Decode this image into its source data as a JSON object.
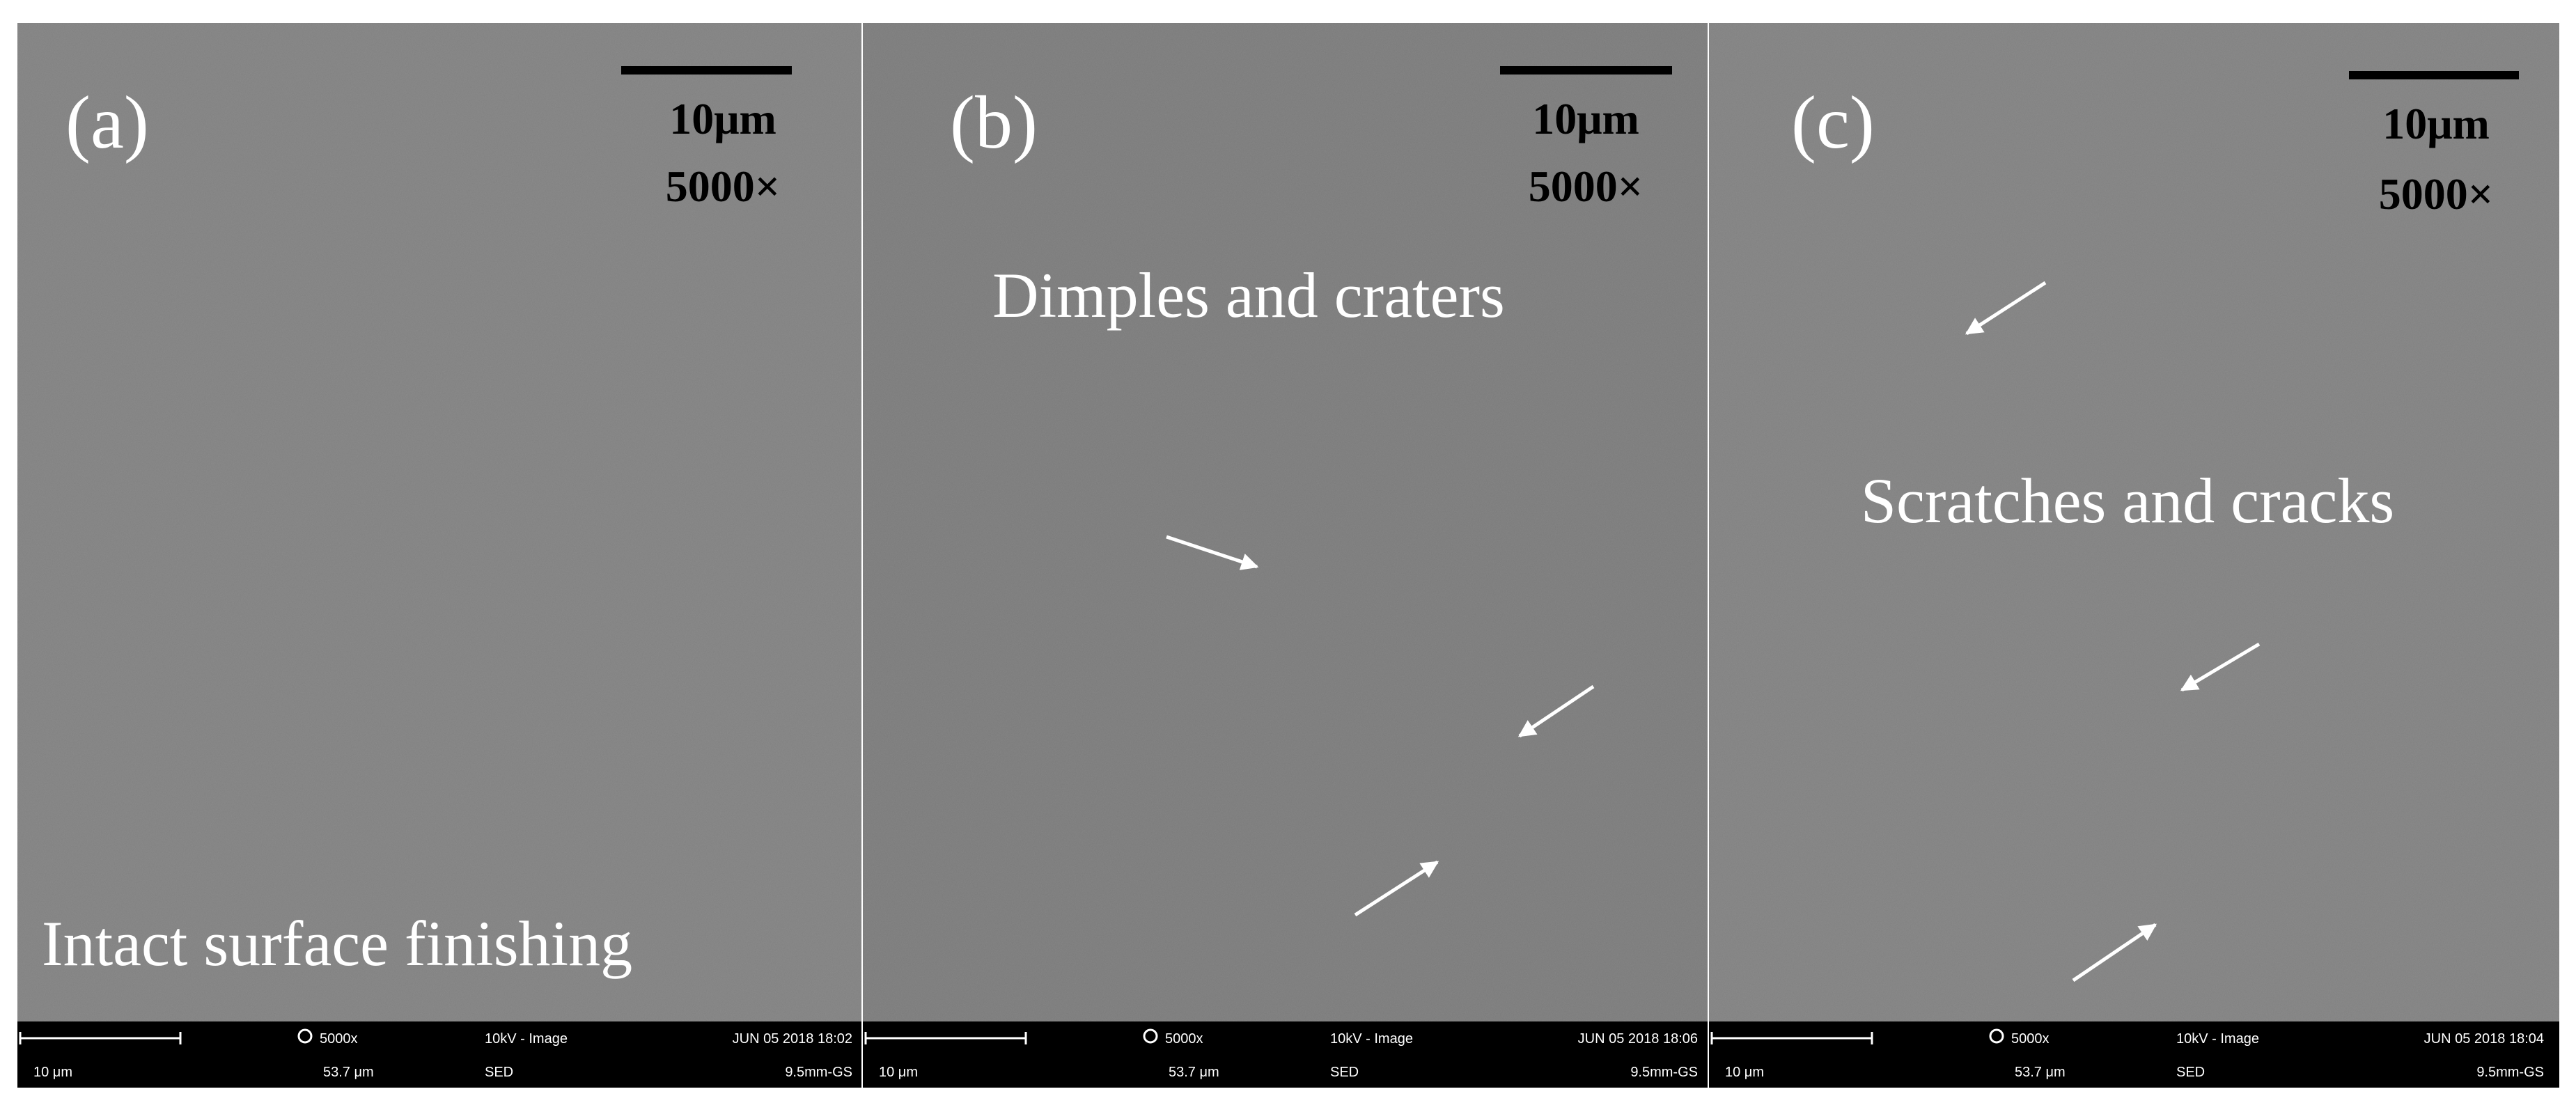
{
  "panels": [
    {
      "label": "(a)",
      "scale_text": "10μm",
      "magnification": "5000×",
      "annotation": "Intact surface finishing",
      "footer": {
        "scale": "10 μm",
        "magnification": "5000x",
        "field_width": "53.7 μm",
        "mode": "10kV - Image",
        "detector": "SED",
        "date": "JUN 05 2018 18:02",
        "working_distance": "9.5mm-GS"
      }
    },
    {
      "label": "(b)",
      "scale_text": "10μm",
      "magnification": "5000×",
      "annotation": "Dimples and craters",
      "footer": {
        "scale": "10 μm",
        "magnification": "5000x",
        "field_width": "53.7 μm",
        "mode": "10kV - Image",
        "detector": "SED",
        "date": "JUN 05 2018 18:06",
        "working_distance": "9.5mm-GS"
      }
    },
    {
      "label": "(c)",
      "scale_text": "10μm",
      "magnification": "5000×",
      "annotation": "Scratches and cracks",
      "footer": {
        "scale": "10 μm",
        "magnification": "5000x",
        "field_width": "53.7 μm",
        "mode": "10kV - Image",
        "detector": "SED",
        "date": "JUN 05 2018 18:04",
        "working_distance": "9.5mm-GS"
      }
    }
  ]
}
